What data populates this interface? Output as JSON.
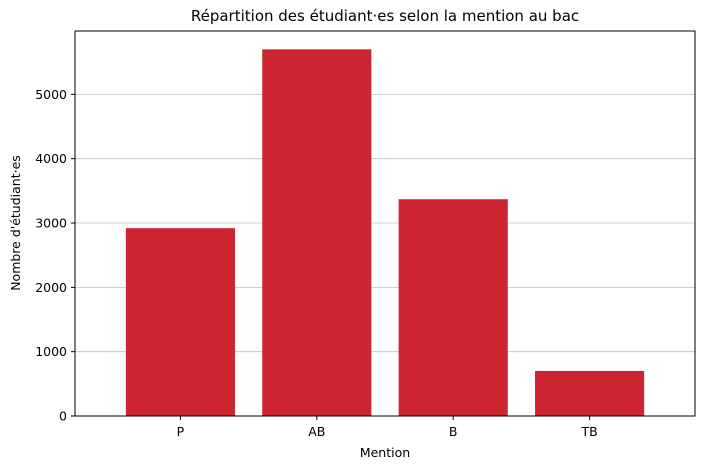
{
  "chart_data": {
    "type": "bar",
    "title": "Répartition des étudiant·es selon la mention au bac",
    "xlabel": "Mention",
    "ylabel": "Nombre d'étudiant·es",
    "categories": [
      "P",
      "AB",
      "B",
      "TB"
    ],
    "values": [
      2920,
      5700,
      3370,
      700
    ],
    "ylim": [
      0,
      5985
    ],
    "yticks": [
      0,
      1000,
      2000,
      3000,
      4000,
      5000
    ],
    "grid": "y",
    "bar_color": "#cc2430",
    "grid_color": "#c0c0c0"
  }
}
